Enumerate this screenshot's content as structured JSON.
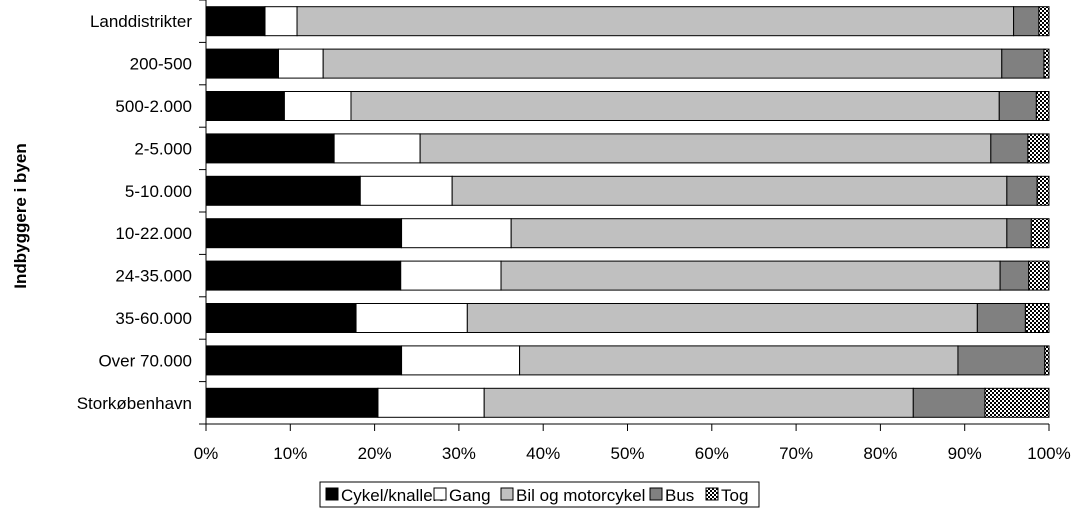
{
  "chart_data": {
    "type": "bar",
    "orientation": "horizontal",
    "stacked": "percent",
    "ylabel": "Indbyggere i byen",
    "xlabel": "",
    "xlim": [
      0,
      100
    ],
    "x_ticks": [
      "0%",
      "10%",
      "20%",
      "30%",
      "40%",
      "50%",
      "60%",
      "70%",
      "80%",
      "90%",
      "100%"
    ],
    "grid": false,
    "legend_position": "bottom",
    "categories": [
      "Landdistrikter",
      "200-500",
      "500-2.000",
      "2-5.000",
      "5-10.000",
      "10-22.000",
      "24-35.000",
      "35-60.000",
      "Over 70.000",
      "Storkøbenhavn"
    ],
    "series": [
      {
        "name": "Cykel/knallert",
        "color": "#000000",
        "values": [
          7.0,
          8.6,
          9.3,
          15.2,
          18.3,
          23.2,
          23.1,
          17.8,
          23.2,
          20.4
        ]
      },
      {
        "name": "Gang",
        "color": "#ffffff",
        "values": [
          3.8,
          5.3,
          7.9,
          10.2,
          10.9,
          13.0,
          11.9,
          13.2,
          14.0,
          12.6
        ]
      },
      {
        "name": "Bil og motorcykel",
        "color": "#c0c0c0",
        "values": [
          85.0,
          80.5,
          76.9,
          67.7,
          65.8,
          58.8,
          59.2,
          60.5,
          52.0,
          50.9
        ]
      },
      {
        "name": "Bus",
        "color": "#808080",
        "values": [
          3.0,
          5.0,
          4.4,
          4.4,
          3.6,
          2.9,
          3.4,
          5.7,
          10.3,
          8.5
        ]
      },
      {
        "name": "Tog",
        "color": "#e0e0e0",
        "pattern": "checker",
        "values": [
          1.2,
          0.6,
          1.5,
          2.5,
          1.4,
          2.1,
          2.4,
          2.8,
          0.5,
          7.6
        ]
      }
    ]
  }
}
